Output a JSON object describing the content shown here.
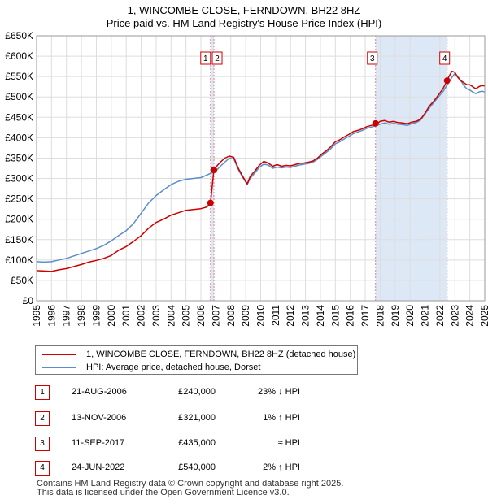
{
  "chart_data": {
    "type": "line",
    "title": "1, WINCOMBE CLOSE, FERNDOWN, BH22 8HZ",
    "subtitle": "Price paid vs. HM Land Registry's House Price Index (HPI)",
    "xlabel": "",
    "ylabel": "",
    "xlim": [
      1995,
      2025
    ],
    "ylim": [
      0,
      650000
    ],
    "x_ticks": [
      "1995",
      "1996",
      "1997",
      "1998",
      "1999",
      "2000",
      "2001",
      "2002",
      "2003",
      "2004",
      "2005",
      "2006",
      "2007",
      "2008",
      "2009",
      "2010",
      "2011",
      "2012",
      "2013",
      "2014",
      "2015",
      "2016",
      "2017",
      "2018",
      "2019",
      "2020",
      "2021",
      "2022",
      "2023",
      "2024",
      "2025"
    ],
    "y_ticks": [
      "£0",
      "£50K",
      "£100K",
      "£150K",
      "£200K",
      "£250K",
      "£300K",
      "£350K",
      "£400K",
      "£450K",
      "£500K",
      "£550K",
      "£600K",
      "£650K"
    ],
    "grid": true,
    "colors": {
      "property": "#cc0000",
      "hpi": "#5b8ec9",
      "highlight": "#dde8f7",
      "marker_line": "#e08080"
    },
    "series": [
      {
        "name": "1, WINCOMBE CLOSE, FERNDOWN, BH22 8HZ (detached house)",
        "x": [
          1995.0,
          1995.5,
          1996.0,
          1996.5,
          1997.0,
          1997.5,
          1998.0,
          1998.5,
          1999.0,
          1999.5,
          2000.0,
          2000.5,
          2001.0,
          2001.5,
          2002.0,
          2002.5,
          2003.0,
          2003.5,
          2004.0,
          2004.5,
          2005.0,
          2005.5,
          2006.0,
          2006.4,
          2006.64,
          2006.64,
          2006.87,
          2006.87,
          2007.0,
          2007.3,
          2007.6,
          2007.9,
          2008.2,
          2008.5,
          2008.8,
          2009.1,
          2009.3,
          2009.6,
          2009.9,
          2010.2,
          2010.5,
          2010.8,
          2011.1,
          2011.4,
          2011.7,
          2012.0,
          2012.3,
          2012.6,
          2012.9,
          2013.2,
          2013.5,
          2013.8,
          2014.1,
          2014.4,
          2014.7,
          2015.0,
          2015.3,
          2015.6,
          2015.9,
          2016.2,
          2016.5,
          2016.8,
          2017.1,
          2017.4,
          2017.7,
          2017.8,
          2018.0,
          2018.3,
          2018.6,
          2018.9,
          2019.2,
          2019.5,
          2019.8,
          2020.1,
          2020.4,
          2020.7,
          2021.0,
          2021.3,
          2021.6,
          2021.9,
          2022.2,
          2022.48,
          2022.6,
          2022.8,
          2023.0,
          2023.2,
          2023.4,
          2023.6,
          2023.8,
          2024.0,
          2024.2,
          2024.4,
          2024.6,
          2024.8,
          2025.0
        ],
        "values": [
          74000,
          73000,
          72000,
          76000,
          79000,
          84000,
          89000,
          95000,
          99000,
          104000,
          111000,
          124000,
          133000,
          146000,
          160000,
          178000,
          192000,
          200000,
          210000,
          216000,
          222000,
          224000,
          226000,
          230000,
          240000,
          240000,
          321000,
          321000,
          328000,
          340000,
          350000,
          355000,
          352000,
          325000,
          305000,
          287000,
          305000,
          318000,
          332000,
          342000,
          338000,
          330000,
          334000,
          330000,
          332000,
          331000,
          334000,
          337000,
          338000,
          340000,
          343000,
          350000,
          360000,
          368000,
          378000,
          390000,
          395000,
          402000,
          408000,
          415000,
          418000,
          422000,
          427000,
          430000,
          433000,
          435000,
          440000,
          442000,
          438000,
          440000,
          437000,
          436000,
          434000,
          438000,
          440000,
          445000,
          460000,
          478000,
          490000,
          505000,
          520000,
          540000,
          550000,
          563000,
          560000,
          548000,
          540000,
          535000,
          530000,
          530000,
          525000,
          520000,
          525000,
          528000,
          527000
        ]
      },
      {
        "name": "HPI: Average price, detached house, Dorset",
        "x": [
          1995.0,
          1995.5,
          1996.0,
          1996.5,
          1997.0,
          1997.5,
          1998.0,
          1998.5,
          1999.0,
          1999.5,
          2000.0,
          2000.5,
          2001.0,
          2001.5,
          2002.0,
          2002.5,
          2003.0,
          2003.5,
          2004.0,
          2004.5,
          2005.0,
          2005.5,
          2006.0,
          2006.5,
          2007.0,
          2007.3,
          2007.6,
          2007.9,
          2008.2,
          2008.5,
          2008.8,
          2009.1,
          2009.3,
          2009.6,
          2009.9,
          2010.2,
          2010.5,
          2010.8,
          2011.1,
          2011.4,
          2011.7,
          2012.0,
          2012.3,
          2012.6,
          2012.9,
          2013.2,
          2013.5,
          2013.8,
          2014.1,
          2014.4,
          2014.7,
          2015.0,
          2015.3,
          2015.6,
          2015.9,
          2016.2,
          2016.5,
          2016.8,
          2017.1,
          2017.4,
          2017.7,
          2018.0,
          2018.3,
          2018.6,
          2018.9,
          2019.2,
          2019.5,
          2019.8,
          2020.1,
          2020.4,
          2020.7,
          2021.0,
          2021.3,
          2021.6,
          2021.9,
          2022.2,
          2022.5,
          2022.8,
          2023.0,
          2023.2,
          2023.4,
          2023.6,
          2023.8,
          2024.0,
          2024.2,
          2024.4,
          2024.6,
          2024.8,
          2025.0
        ],
        "values": [
          96000,
          95000,
          96000,
          100000,
          104000,
          110000,
          116000,
          122000,
          128000,
          136000,
          147000,
          160000,
          172000,
          190000,
          215000,
          240000,
          258000,
          272000,
          285000,
          293000,
          298000,
          300000,
          302000,
          310000,
          318000,
          330000,
          340000,
          350000,
          348000,
          322000,
          302000,
          285000,
          300000,
          313000,
          327000,
          335000,
          333000,
          325000,
          328000,
          326000,
          328000,
          327000,
          330000,
          333000,
          335000,
          337000,
          340000,
          347000,
          356000,
          364000,
          373000,
          385000,
          390000,
          397000,
          403000,
          410000,
          414000,
          418000,
          423000,
          426000,
          429000,
          433000,
          436000,
          433000,
          435000,
          433000,
          432000,
          430000,
          434000,
          437000,
          443000,
          458000,
          473000,
          487000,
          500000,
          513000,
          530000,
          548000,
          558000,
          550000,
          540000,
          528000,
          520000,
          517000,
          512000,
          508000,
          512000,
          514000,
          512000
        ]
      }
    ],
    "transactions_on_chart": [
      {
        "label": "1",
        "x": 2006.64,
        "value": 240000
      },
      {
        "label": "2",
        "x": 2006.87,
        "value": 321000
      },
      {
        "label": "3",
        "x": 2017.69,
        "value": 435000
      },
      {
        "label": "4",
        "x": 2022.48,
        "value": 540000
      }
    ],
    "highlight_ranges": [
      [
        2006.64,
        2006.87
      ],
      [
        2017.69,
        2022.48
      ]
    ]
  },
  "legend": {
    "property_label": "1, WINCOMBE CLOSE, FERNDOWN, BH22 8HZ (detached house)",
    "hpi_label": "HPI: Average price, detached house, Dorset"
  },
  "transactions": [
    {
      "num": "1",
      "date": "21-AUG-2006",
      "price": "£240,000",
      "delta": "23% ↓ HPI"
    },
    {
      "num": "2",
      "date": "13-NOV-2006",
      "price": "£321,000",
      "delta": "1% ↑ HPI"
    },
    {
      "num": "3",
      "date": "11-SEP-2017",
      "price": "£435,000",
      "delta": "≈ HPI"
    },
    {
      "num": "4",
      "date": "24-JUN-2022",
      "price": "£540,000",
      "delta": "2% ↑ HPI"
    }
  ],
  "footer": {
    "line1": "Contains HM Land Registry data © Crown copyright and database right 2025.",
    "line2": "This data is licensed under the Open Government Licence v3.0."
  }
}
